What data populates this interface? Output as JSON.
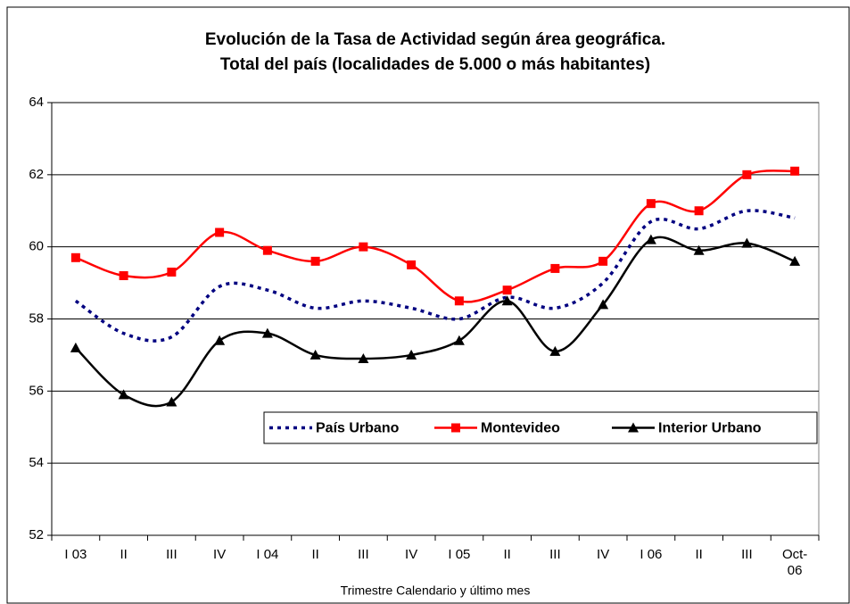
{
  "chart_data": {
    "type": "line",
    "title": "Evolución de la Tasa de Actividad según área geográfica.",
    "subtitle": "Total del país (localidades de 5.000 o más habitantes)",
    "x_label": "Trimestre Calendario y último mes",
    "categories": [
      "I 03",
      "II",
      "III",
      "IV",
      "I 04",
      "II",
      "III",
      "IV",
      "I 05",
      "II",
      "III",
      "IV",
      "I 06",
      "II",
      "III",
      "Oct-06"
    ],
    "series": [
      {
        "name": "País Urbano",
        "color": "#000080",
        "dash": true,
        "marker": "none",
        "values": [
          58.5,
          57.6,
          57.5,
          58.9,
          58.8,
          58.3,
          58.5,
          58.3,
          58.0,
          58.6,
          58.3,
          59.0,
          60.7,
          60.5,
          61.0,
          60.8
        ]
      },
      {
        "name": "Montevideo",
        "color": "#ff0000",
        "dash": false,
        "marker": "square",
        "values": [
          59.7,
          59.2,
          59.3,
          60.4,
          59.9,
          59.6,
          60.0,
          59.5,
          58.5,
          58.8,
          59.4,
          59.6,
          61.2,
          61.0,
          62.0,
          62.1
        ]
      },
      {
        "name": "Interior Urbano",
        "color": "#000000",
        "dash": false,
        "marker": "triangle",
        "values": [
          57.2,
          55.9,
          55.7,
          57.4,
          57.6,
          57.0,
          56.9,
          57.0,
          57.4,
          58.5,
          57.1,
          58.4,
          60.2,
          59.9,
          60.1,
          59.6
        ]
      }
    ],
    "ylim": [
      52,
      64
    ],
    "yticks": [
      52,
      54,
      56,
      58,
      60,
      62,
      64
    ],
    "grid": true,
    "smooth": true
  }
}
